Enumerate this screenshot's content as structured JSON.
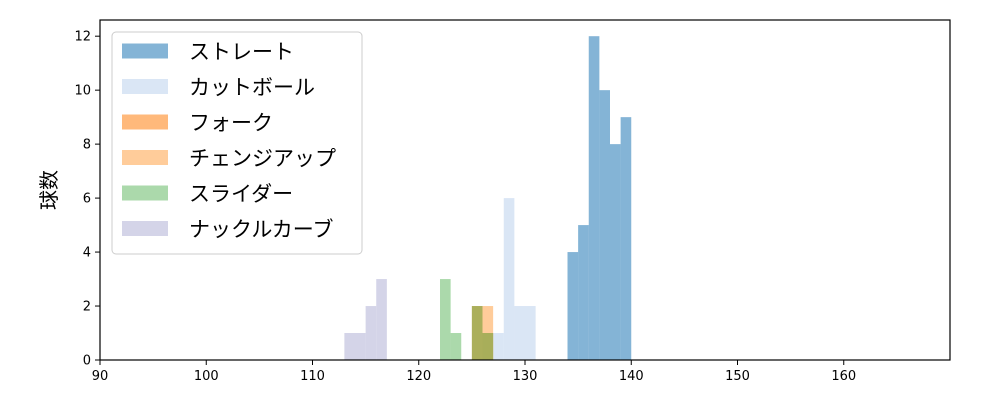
{
  "chart_data": {
    "type": "bar",
    "subtype": "histogram",
    "ylabel": "球数",
    "xlim": [
      90,
      170
    ],
    "ylim": [
      0,
      12.6
    ],
    "xticks": [
      90,
      100,
      110,
      120,
      130,
      140,
      150,
      160
    ],
    "yticks": [
      0,
      2,
      4,
      6,
      8,
      10,
      12
    ],
    "grid": false,
    "legend_position": "top-left",
    "series": [
      {
        "name": "ストレート",
        "color": "#1f77b4",
        "opacity": 0.55,
        "bins": [
          [
            134,
            135,
            4
          ],
          [
            135,
            136,
            5
          ],
          [
            136,
            137,
            12
          ],
          [
            137,
            138,
            10
          ],
          [
            138,
            139,
            8
          ],
          [
            139,
            140,
            9
          ]
        ]
      },
      {
        "name": "カットボール",
        "color": "#aec7e8",
        "opacity": 0.45,
        "bins": [
          [
            126,
            127,
            1
          ],
          [
            127,
            128,
            1
          ],
          [
            128,
            129,
            6
          ],
          [
            129,
            130,
            2
          ],
          [
            130,
            131,
            2
          ]
        ]
      },
      {
        "name": "フォーク",
        "color": "#ff7f0e",
        "opacity": 0.55,
        "bins": [
          [
            125,
            126,
            2
          ],
          [
            126,
            127,
            1
          ]
        ]
      },
      {
        "name": "チェンジアップ",
        "color": "#ffbb78",
        "opacity": 0.75,
        "bins": [
          [
            126,
            127,
            2
          ]
        ]
      },
      {
        "name": "スライダー",
        "color": "#2ca02c",
        "opacity": 0.4,
        "bins": [
          [
            122,
            123,
            3
          ],
          [
            123,
            124,
            1
          ],
          [
            125,
            126,
            2
          ],
          [
            126,
            127,
            1
          ]
        ]
      },
      {
        "name": "ナックルカーブ",
        "color": "#c5c5e0",
        "opacity": 0.75,
        "bins": [
          [
            113,
            114,
            1
          ],
          [
            114,
            115,
            1
          ],
          [
            115,
            116,
            2
          ],
          [
            116,
            117,
            3
          ]
        ]
      }
    ]
  }
}
